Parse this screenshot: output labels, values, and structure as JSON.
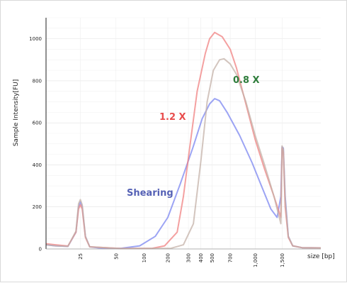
{
  "chart_data": {
    "type": "line",
    "title": "",
    "xlabel": "size [bp]",
    "ylabel": "Sample Intensity[FU]",
    "ylim": [
      0,
      1100
    ],
    "yticks": [
      0,
      200,
      400,
      600,
      800,
      1000
    ],
    "x_tick_labels": [
      "25",
      "50",
      "100",
      "200",
      "300",
      "400",
      "500",
      "700",
      "1,000",
      "1,500"
    ],
    "grid": true,
    "annotations": [
      {
        "text": "Shearing",
        "color": "#5561b5"
      },
      {
        "text": "1.2 X",
        "color": "#e84c4c"
      },
      {
        "text": "0.8 X",
        "color": "#2f7d3c"
      }
    ],
    "series": [
      {
        "name": "Shearing",
        "color": "#7b86f0",
        "points": [
          [
            0,
            20
          ],
          [
            15,
            15
          ],
          [
            35,
            12
          ],
          [
            48,
            80
          ],
          [
            52,
            200
          ],
          [
            55,
            225
          ],
          [
            58,
            200
          ],
          [
            63,
            60
          ],
          [
            70,
            10
          ],
          [
            90,
            3
          ],
          [
            120,
            3
          ],
          [
            150,
            15
          ],
          [
            175,
            60
          ],
          [
            195,
            150
          ],
          [
            215,
            310
          ],
          [
            235,
            480
          ],
          [
            250,
            620
          ],
          [
            262,
            690
          ],
          [
            270,
            715
          ],
          [
            278,
            705
          ],
          [
            290,
            650
          ],
          [
            310,
            540
          ],
          [
            330,
            410
          ],
          [
            345,
            300
          ],
          [
            360,
            190
          ],
          [
            370,
            150
          ],
          [
            376,
            250
          ],
          [
            378,
            485
          ],
          [
            380,
            480
          ],
          [
            383,
            250
          ],
          [
            388,
            60
          ],
          [
            395,
            15
          ],
          [
            410,
            6
          ],
          [
            440,
            5
          ]
        ]
      },
      {
        "name": "1.2 X",
        "color": "#f08080",
        "points": [
          [
            0,
            25
          ],
          [
            15,
            20
          ],
          [
            35,
            14
          ],
          [
            48,
            80
          ],
          [
            52,
            190
          ],
          [
            55,
            210
          ],
          [
            58,
            190
          ],
          [
            63,
            55
          ],
          [
            70,
            10
          ],
          [
            120,
            2
          ],
          [
            170,
            3
          ],
          [
            190,
            15
          ],
          [
            210,
            80
          ],
          [
            220,
            250
          ],
          [
            230,
            480
          ],
          [
            242,
            750
          ],
          [
            255,
            930
          ],
          [
            262,
            1000
          ],
          [
            270,
            1030
          ],
          [
            282,
            1010
          ],
          [
            295,
            950
          ],
          [
            305,
            860
          ],
          [
            320,
            690
          ],
          [
            335,
            520
          ],
          [
            350,
            380
          ],
          [
            365,
            250
          ],
          [
            376,
            150
          ],
          [
            378,
            480
          ],
          [
            380,
            460
          ],
          [
            383,
            200
          ],
          [
            388,
            55
          ],
          [
            395,
            15
          ],
          [
            410,
            6
          ],
          [
            440,
            5
          ]
        ]
      },
      {
        "name": "0.8 X",
        "color": "#c4b2a8",
        "points": [
          [
            0,
            20
          ],
          [
            15,
            15
          ],
          [
            35,
            12
          ],
          [
            48,
            85
          ],
          [
            52,
            215
          ],
          [
            55,
            235
          ],
          [
            58,
            210
          ],
          [
            63,
            60
          ],
          [
            70,
            10
          ],
          [
            120,
            2
          ],
          [
            200,
            3
          ],
          [
            220,
            20
          ],
          [
            236,
            120
          ],
          [
            248,
            420
          ],
          [
            258,
            700
          ],
          [
            268,
            850
          ],
          [
            278,
            900
          ],
          [
            285,
            905
          ],
          [
            295,
            880
          ],
          [
            305,
            830
          ],
          [
            320,
            700
          ],
          [
            335,
            540
          ],
          [
            350,
            400
          ],
          [
            365,
            250
          ],
          [
            376,
            120
          ],
          [
            378,
            490
          ],
          [
            380,
            475
          ],
          [
            383,
            230
          ],
          [
            388,
            60
          ],
          [
            395,
            15
          ],
          [
            410,
            6
          ],
          [
            440,
            5
          ]
        ]
      }
    ]
  }
}
